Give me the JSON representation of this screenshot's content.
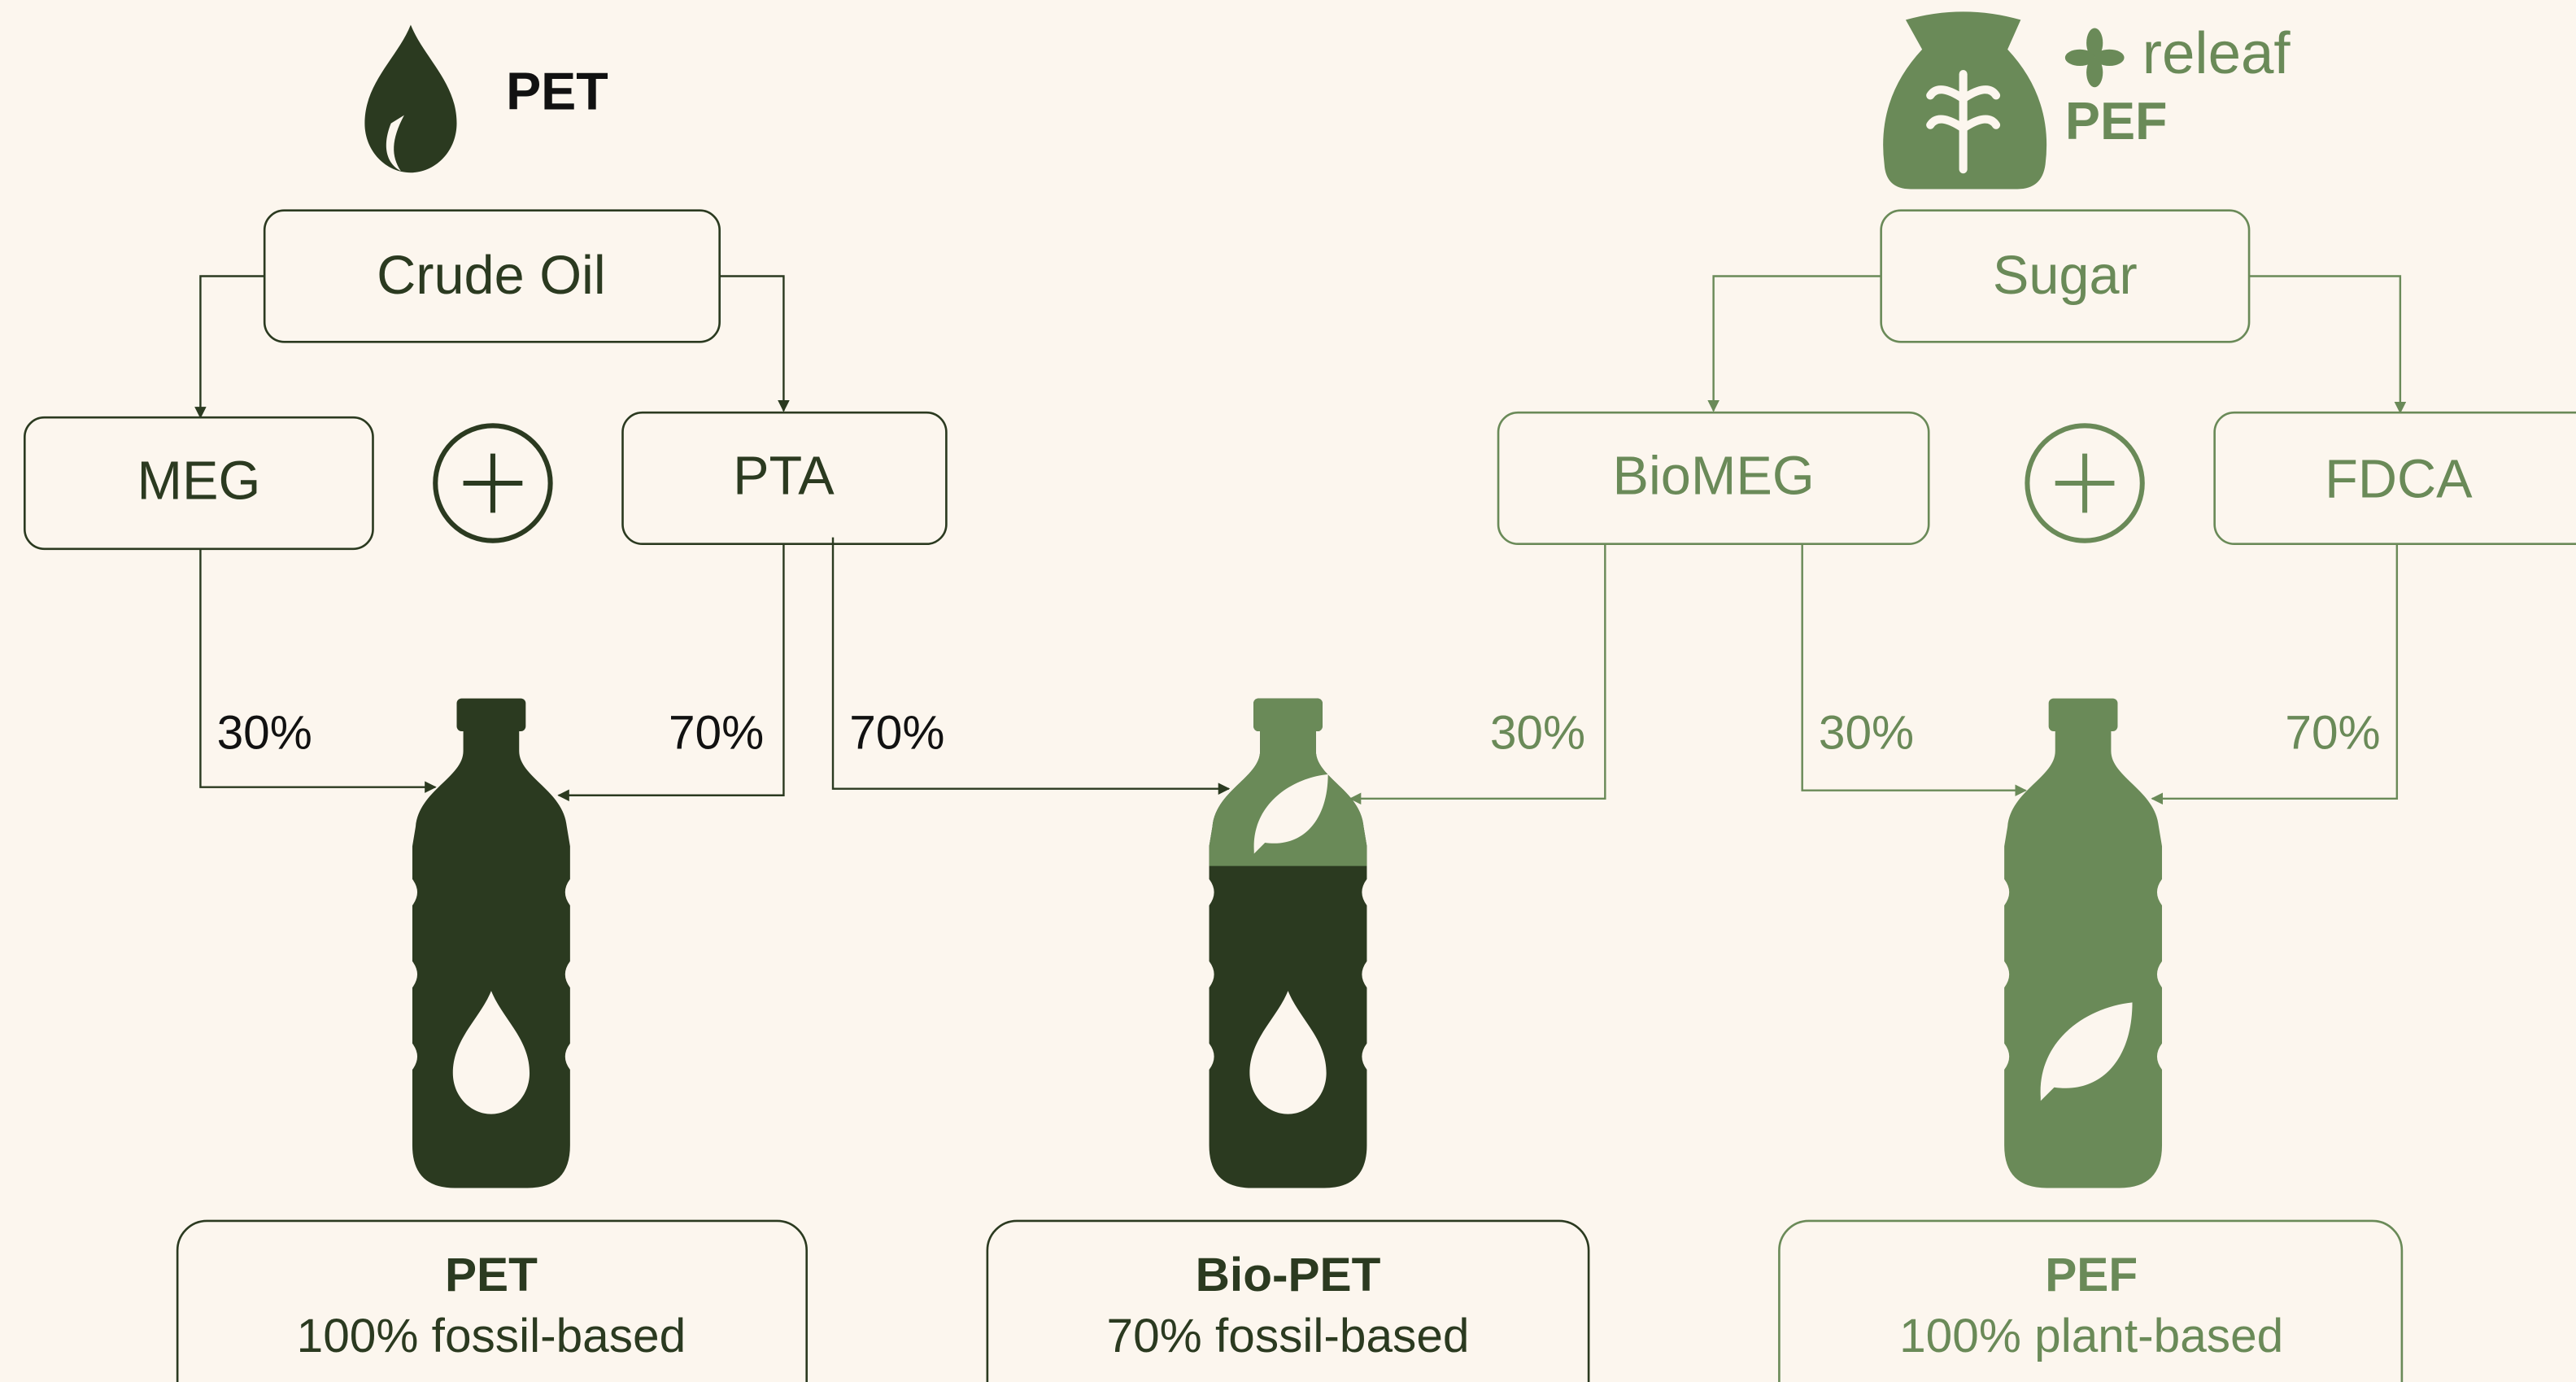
{
  "pet_header": {
    "title": "PET"
  },
  "pef_header": {
    "brand": "releaf",
    "title": "PEF"
  },
  "nodes": [
    {
      "label": "Crude Oil"
    },
    {
      "label": "MEG"
    },
    {
      "label": "PTA"
    },
    {
      "label": "Sugar"
    },
    {
      "label": "BioMEG"
    },
    {
      "label": "FDCA"
    }
  ],
  "edges": [
    {
      "from": "MEG",
      "to": "PET",
      "label": "30%"
    },
    {
      "from": "PTA",
      "to": "PET",
      "label": "70%"
    },
    {
      "from": "PTA",
      "to": "Bio-PET",
      "label": "70%"
    },
    {
      "from": "BioMEG",
      "to": "Bio-PET",
      "label": "30%"
    },
    {
      "from": "BioMEG",
      "to": "PEF",
      "label": "30%"
    },
    {
      "from": "FDCA",
      "to": "PEF",
      "label": "70%"
    }
  ],
  "products": [
    {
      "name": "PET",
      "description": "100% fossil-based"
    },
    {
      "name": "Bio-PET",
      "description": "70% fossil-based"
    },
    {
      "name": "PEF",
      "description": "100% plant-based"
    }
  ]
}
